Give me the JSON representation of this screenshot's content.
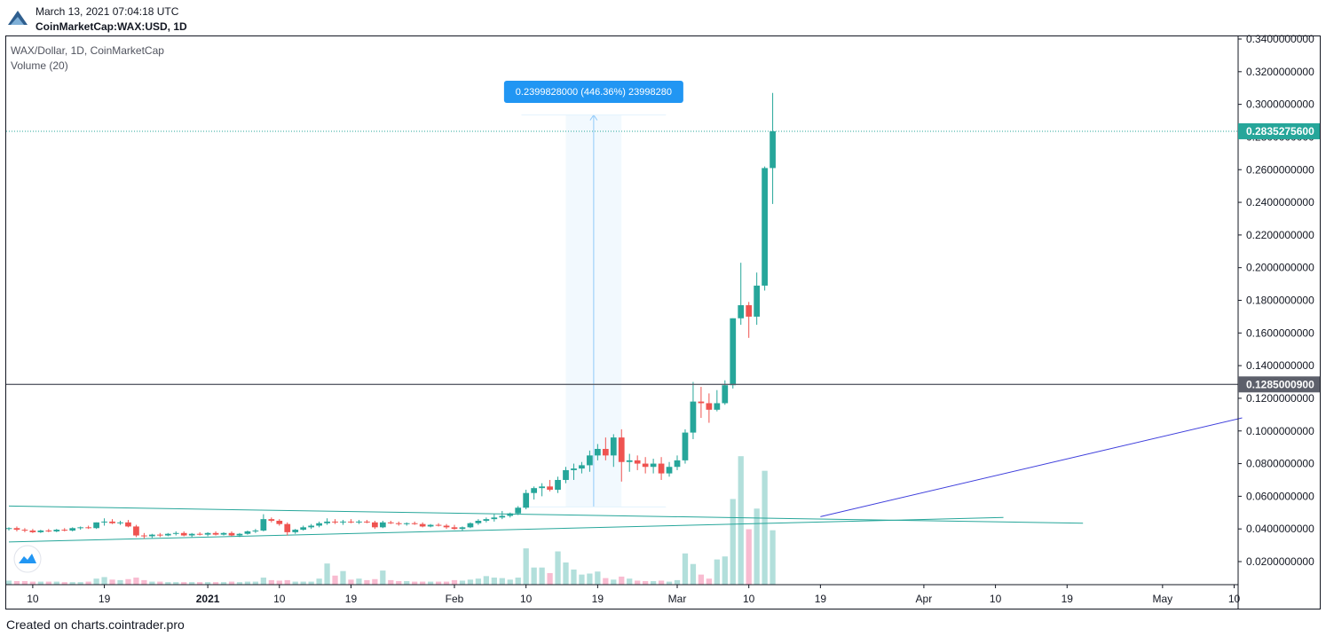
{
  "header": {
    "date": "March 13, 2021 07:04:18 UTC",
    "symbol": "CoinMarketCap:WAX:USD, 1D"
  },
  "legend": {
    "title": "WAX/Dollar, 1D, CoinMarketCap",
    "volume": "Volume (20)"
  },
  "footer": {
    "text": "Created on charts.cointrader.pro"
  },
  "colors": {
    "up": "#26a69a",
    "down": "#ef5350",
    "vol_up": "#b2dfdb",
    "vol_down": "#f8bbd0",
    "price_tag": "#26a69a",
    "level_tag": "#5d606b",
    "measure": "#2196f3",
    "trend_blue": "#3f3fdc",
    "trend_green": "#26a69a"
  },
  "chart_data": {
    "type": "candlestick",
    "ylim": [
      0.0,
      0.344
    ],
    "y_ticks": [
      "0.3400000000",
      "0.3200000000",
      "0.3000000000",
      "0.2800000000",
      "0.2600000000",
      "0.2400000000",
      "0.2200000000",
      "0.2000000000",
      "0.1800000000",
      "0.1600000000",
      "0.1400000000",
      "0.1200000000",
      "0.1000000000",
      "0.0800000000",
      "0.0600000000",
      "0.0400000000",
      "0.0200000000"
    ],
    "y_tick_values": [
      0.34,
      0.32,
      0.3,
      0.28,
      0.26,
      0.24,
      0.22,
      0.2,
      0.18,
      0.16,
      0.14,
      0.12,
      0.1,
      0.08,
      0.06,
      0.04,
      0.02
    ],
    "x_ticks": [
      {
        "label": "10",
        "day": -22
      },
      {
        "label": "19",
        "day": -13
      },
      {
        "label": "2021",
        "day": 0
      },
      {
        "label": "10",
        "day": 9
      },
      {
        "label": "19",
        "day": 18
      },
      {
        "label": "Feb",
        "day": 31
      },
      {
        "label": "10",
        "day": 40
      },
      {
        "label": "19",
        "day": 49
      },
      {
        "label": "Mar",
        "day": 59
      },
      {
        "label": "10",
        "day": 68
      },
      {
        "label": "19",
        "day": 77
      },
      {
        "label": "Apr",
        "day": 90
      },
      {
        "label": "10",
        "day": 99
      },
      {
        "label": "19",
        "day": 108
      },
      {
        "label": "May",
        "day": 120
      },
      {
        "label": "10",
        "day": 129
      }
    ],
    "x_range_days": [
      -25,
      129.5
    ],
    "candles": [
      {
        "d": -25,
        "o": 0.04,
        "h": 0.041,
        "l": 0.039,
        "c": 0.0405,
        "v": 0.8
      },
      {
        "d": -24,
        "o": 0.0405,
        "h": 0.0415,
        "l": 0.0385,
        "c": 0.0395,
        "v": 0.7
      },
      {
        "d": -23,
        "o": 0.0395,
        "h": 0.0405,
        "l": 0.038,
        "c": 0.039,
        "v": 0.7
      },
      {
        "d": -22,
        "o": 0.039,
        "h": 0.04,
        "l": 0.0375,
        "c": 0.038,
        "v": 0.6
      },
      {
        "d": -21,
        "o": 0.038,
        "h": 0.0395,
        "l": 0.0375,
        "c": 0.039,
        "v": 0.6
      },
      {
        "d": -20,
        "o": 0.039,
        "h": 0.04,
        "l": 0.038,
        "c": 0.0385,
        "v": 0.6
      },
      {
        "d": -19,
        "o": 0.0385,
        "h": 0.04,
        "l": 0.038,
        "c": 0.0395,
        "v": 0.6
      },
      {
        "d": -18,
        "o": 0.0395,
        "h": 0.0405,
        "l": 0.0385,
        "c": 0.039,
        "v": 0.5
      },
      {
        "d": -17,
        "o": 0.039,
        "h": 0.041,
        "l": 0.0385,
        "c": 0.0405,
        "v": 0.5
      },
      {
        "d": -16,
        "o": 0.0405,
        "h": 0.0415,
        "l": 0.0395,
        "c": 0.041,
        "v": 0.5
      },
      {
        "d": -15,
        "o": 0.041,
        "h": 0.042,
        "l": 0.04,
        "c": 0.0405,
        "v": 0.6
      },
      {
        "d": -14,
        "o": 0.0405,
        "h": 0.044,
        "l": 0.04,
        "c": 0.044,
        "v": 1.2
      },
      {
        "d": -13,
        "o": 0.044,
        "h": 0.0465,
        "l": 0.042,
        "c": 0.0445,
        "v": 1.5
      },
      {
        "d": -12,
        "o": 0.0445,
        "h": 0.046,
        "l": 0.043,
        "c": 0.0435,
        "v": 1.0
      },
      {
        "d": -11,
        "o": 0.0435,
        "h": 0.045,
        "l": 0.0425,
        "c": 0.044,
        "v": 0.9
      },
      {
        "d": -10,
        "o": 0.044,
        "h": 0.0455,
        "l": 0.041,
        "c": 0.0415,
        "v": 1.1
      },
      {
        "d": -9,
        "o": 0.0415,
        "h": 0.0425,
        "l": 0.035,
        "c": 0.036,
        "v": 1.4
      },
      {
        "d": -8,
        "o": 0.036,
        "h": 0.0375,
        "l": 0.034,
        "c": 0.0355,
        "v": 0.9
      },
      {
        "d": -7,
        "o": 0.0355,
        "h": 0.037,
        "l": 0.0345,
        "c": 0.0365,
        "v": 0.6
      },
      {
        "d": -6,
        "o": 0.0365,
        "h": 0.0375,
        "l": 0.035,
        "c": 0.036,
        "v": 0.6
      },
      {
        "d": -5,
        "o": 0.036,
        "h": 0.0375,
        "l": 0.0355,
        "c": 0.037,
        "v": 0.5
      },
      {
        "d": -4,
        "o": 0.037,
        "h": 0.0385,
        "l": 0.036,
        "c": 0.0375,
        "v": 0.5
      },
      {
        "d": -3,
        "o": 0.0375,
        "h": 0.0385,
        "l": 0.0355,
        "c": 0.036,
        "v": 0.5
      },
      {
        "d": -2,
        "o": 0.036,
        "h": 0.0375,
        "l": 0.035,
        "c": 0.037,
        "v": 0.5
      },
      {
        "d": -1,
        "o": 0.037,
        "h": 0.038,
        "l": 0.036,
        "c": 0.0365,
        "v": 0.5
      },
      {
        "d": 0,
        "o": 0.0365,
        "h": 0.038,
        "l": 0.0355,
        "c": 0.0375,
        "v": 0.5
      },
      {
        "d": 1,
        "o": 0.0375,
        "h": 0.0385,
        "l": 0.036,
        "c": 0.0365,
        "v": 0.5
      },
      {
        "d": 2,
        "o": 0.0365,
        "h": 0.038,
        "l": 0.036,
        "c": 0.0375,
        "v": 0.5
      },
      {
        "d": 3,
        "o": 0.0375,
        "h": 0.0385,
        "l": 0.0355,
        "c": 0.036,
        "v": 0.6
      },
      {
        "d": 4,
        "o": 0.036,
        "h": 0.0375,
        "l": 0.035,
        "c": 0.037,
        "v": 0.5
      },
      {
        "d": 5,
        "o": 0.037,
        "h": 0.039,
        "l": 0.0365,
        "c": 0.0385,
        "v": 0.6
      },
      {
        "d": 6,
        "o": 0.0385,
        "h": 0.04,
        "l": 0.0375,
        "c": 0.039,
        "v": 0.6
      },
      {
        "d": 7,
        "o": 0.039,
        "h": 0.049,
        "l": 0.0385,
        "c": 0.046,
        "v": 1.4
      },
      {
        "d": 8,
        "o": 0.046,
        "h": 0.047,
        "l": 0.044,
        "c": 0.045,
        "v": 0.9
      },
      {
        "d": 9,
        "o": 0.045,
        "h": 0.046,
        "l": 0.042,
        "c": 0.043,
        "v": 0.8
      },
      {
        "d": 10,
        "o": 0.043,
        "h": 0.044,
        "l": 0.036,
        "c": 0.038,
        "v": 0.9
      },
      {
        "d": 11,
        "o": 0.038,
        "h": 0.04,
        "l": 0.037,
        "c": 0.0395,
        "v": 0.6
      },
      {
        "d": 12,
        "o": 0.0395,
        "h": 0.042,
        "l": 0.039,
        "c": 0.041,
        "v": 0.6
      },
      {
        "d": 13,
        "o": 0.041,
        "h": 0.043,
        "l": 0.04,
        "c": 0.042,
        "v": 0.6
      },
      {
        "d": 14,
        "o": 0.042,
        "h": 0.0445,
        "l": 0.041,
        "c": 0.0435,
        "v": 1.2
      },
      {
        "d": 15,
        "o": 0.0435,
        "h": 0.0465,
        "l": 0.0425,
        "c": 0.0445,
        "v": 4.2
      },
      {
        "d": 16,
        "o": 0.0445,
        "h": 0.046,
        "l": 0.043,
        "c": 0.044,
        "v": 1.8
      },
      {
        "d": 17,
        "o": 0.044,
        "h": 0.0455,
        "l": 0.0425,
        "c": 0.0445,
        "v": 2.7
      },
      {
        "d": 18,
        "o": 0.0445,
        "h": 0.046,
        "l": 0.0435,
        "c": 0.044,
        "v": 1.0
      },
      {
        "d": 19,
        "o": 0.044,
        "h": 0.0455,
        "l": 0.043,
        "c": 0.0445,
        "v": 1.2
      },
      {
        "d": 20,
        "o": 0.0445,
        "h": 0.0455,
        "l": 0.0435,
        "c": 0.044,
        "v": 0.9
      },
      {
        "d": 21,
        "o": 0.044,
        "h": 0.045,
        "l": 0.04,
        "c": 0.041,
        "v": 1.1
      },
      {
        "d": 22,
        "o": 0.041,
        "h": 0.045,
        "l": 0.0405,
        "c": 0.044,
        "v": 2.8
      },
      {
        "d": 23,
        "o": 0.044,
        "h": 0.045,
        "l": 0.043,
        "c": 0.0435,
        "v": 0.9
      },
      {
        "d": 24,
        "o": 0.0435,
        "h": 0.0445,
        "l": 0.042,
        "c": 0.043,
        "v": 0.7
      },
      {
        "d": 25,
        "o": 0.043,
        "h": 0.044,
        "l": 0.042,
        "c": 0.0435,
        "v": 0.7
      },
      {
        "d": 26,
        "o": 0.0435,
        "h": 0.0445,
        "l": 0.0425,
        "c": 0.043,
        "v": 0.6
      },
      {
        "d": 27,
        "o": 0.043,
        "h": 0.044,
        "l": 0.041,
        "c": 0.0415,
        "v": 0.6
      },
      {
        "d": 28,
        "o": 0.0415,
        "h": 0.043,
        "l": 0.041,
        "c": 0.0425,
        "v": 0.6
      },
      {
        "d": 29,
        "o": 0.0425,
        "h": 0.0435,
        "l": 0.0415,
        "c": 0.042,
        "v": 0.6
      },
      {
        "d": 30,
        "o": 0.042,
        "h": 0.043,
        "l": 0.04,
        "c": 0.041,
        "v": 0.6
      },
      {
        "d": 31,
        "o": 0.041,
        "h": 0.0425,
        "l": 0.0395,
        "c": 0.04,
        "v": 0.9
      },
      {
        "d": 32,
        "o": 0.04,
        "h": 0.0415,
        "l": 0.039,
        "c": 0.041,
        "v": 0.8
      },
      {
        "d": 33,
        "o": 0.041,
        "h": 0.044,
        "l": 0.0405,
        "c": 0.0435,
        "v": 1.0
      },
      {
        "d": 34,
        "o": 0.0435,
        "h": 0.046,
        "l": 0.0425,
        "c": 0.045,
        "v": 1.2
      },
      {
        "d": 35,
        "o": 0.045,
        "h": 0.047,
        "l": 0.044,
        "c": 0.046,
        "v": 1.7
      },
      {
        "d": 36,
        "o": 0.046,
        "h": 0.049,
        "l": 0.0445,
        "c": 0.047,
        "v": 1.4
      },
      {
        "d": 37,
        "o": 0.047,
        "h": 0.051,
        "l": 0.046,
        "c": 0.048,
        "v": 1.3
      },
      {
        "d": 38,
        "o": 0.048,
        "h": 0.05,
        "l": 0.047,
        "c": 0.0495,
        "v": 1.0
      },
      {
        "d": 39,
        "o": 0.0495,
        "h": 0.054,
        "l": 0.0485,
        "c": 0.053,
        "v": 1.4
      },
      {
        "d": 40,
        "o": 0.053,
        "h": 0.064,
        "l": 0.052,
        "c": 0.062,
        "v": 7.2
      },
      {
        "d": 41,
        "o": 0.062,
        "h": 0.066,
        "l": 0.058,
        "c": 0.065,
        "v": 3.4
      },
      {
        "d": 42,
        "o": 0.065,
        "h": 0.068,
        "l": 0.06,
        "c": 0.066,
        "v": 3.4
      },
      {
        "d": 43,
        "o": 0.066,
        "h": 0.07,
        "l": 0.063,
        "c": 0.064,
        "v": 2.3
      },
      {
        "d": 44,
        "o": 0.064,
        "h": 0.072,
        "l": 0.062,
        "c": 0.07,
        "v": 6.6
      },
      {
        "d": 45,
        "o": 0.07,
        "h": 0.078,
        "l": 0.068,
        "c": 0.076,
        "v": 4.4
      },
      {
        "d": 46,
        "o": 0.076,
        "h": 0.08,
        "l": 0.07,
        "c": 0.077,
        "v": 3.0
      },
      {
        "d": 47,
        "o": 0.077,
        "h": 0.081,
        "l": 0.074,
        "c": 0.079,
        "v": 2.0
      },
      {
        "d": 48,
        "o": 0.079,
        "h": 0.088,
        "l": 0.075,
        "c": 0.085,
        "v": 2.2
      },
      {
        "d": 49,
        "o": 0.085,
        "h": 0.092,
        "l": 0.082,
        "c": 0.089,
        "v": 2.6
      },
      {
        "d": 50,
        "o": 0.089,
        "h": 0.096,
        "l": 0.082,
        "c": 0.085,
        "v": 1.3
      },
      {
        "d": 51,
        "o": 0.085,
        "h": 0.098,
        "l": 0.078,
        "c": 0.096,
        "v": 1.0
      },
      {
        "d": 52,
        "o": 0.096,
        "h": 0.101,
        "l": 0.069,
        "c": 0.081,
        "v": 1.6
      },
      {
        "d": 53,
        "o": 0.081,
        "h": 0.086,
        "l": 0.075,
        "c": 0.082,
        "v": 1.2
      },
      {
        "d": 54,
        "o": 0.082,
        "h": 0.085,
        "l": 0.076,
        "c": 0.08,
        "v": 0.8
      },
      {
        "d": 55,
        "o": 0.08,
        "h": 0.084,
        "l": 0.074,
        "c": 0.078,
        "v": 0.7
      },
      {
        "d": 56,
        "o": 0.078,
        "h": 0.083,
        "l": 0.074,
        "c": 0.08,
        "v": 0.7
      },
      {
        "d": 57,
        "o": 0.08,
        "h": 0.084,
        "l": 0.07,
        "c": 0.074,
        "v": 0.8
      },
      {
        "d": 58,
        "o": 0.074,
        "h": 0.081,
        "l": 0.072,
        "c": 0.078,
        "v": 0.6
      },
      {
        "d": 59,
        "o": 0.078,
        "h": 0.085,
        "l": 0.076,
        "c": 0.082,
        "v": 0.9
      },
      {
        "d": 60,
        "o": 0.082,
        "h": 0.101,
        "l": 0.08,
        "c": 0.099,
        "v": 6.2
      },
      {
        "d": 61,
        "o": 0.099,
        "h": 0.13,
        "l": 0.095,
        "c": 0.118,
        "v": 4.1
      },
      {
        "d": 62,
        "o": 0.118,
        "h": 0.127,
        "l": 0.108,
        "c": 0.117,
        "v": 2.0
      },
      {
        "d": 63,
        "o": 0.117,
        "h": 0.123,
        "l": 0.105,
        "c": 0.113,
        "v": 1.2
      },
      {
        "d": 64,
        "o": 0.113,
        "h": 0.125,
        "l": 0.112,
        "c": 0.117,
        "v": 5.0
      },
      {
        "d": 65,
        "o": 0.117,
        "h": 0.131,
        "l": 0.116,
        "c": 0.128,
        "v": 5.6
      },
      {
        "d": 66,
        "o": 0.128,
        "h": 0.169,
        "l": 0.126,
        "c": 0.169,
        "v": 17.0
      },
      {
        "d": 67,
        "o": 0.169,
        "h": 0.203,
        "l": 0.165,
        "c": 0.177,
        "v": 25.5
      },
      {
        "d": 68,
        "o": 0.177,
        "h": 0.179,
        "l": 0.157,
        "c": 0.17,
        "v": 11.0
      },
      {
        "d": 69,
        "o": 0.17,
        "h": 0.197,
        "l": 0.165,
        "c": 0.189,
        "v": 15.1
      },
      {
        "d": 70,
        "o": 0.189,
        "h": 0.262,
        "l": 0.186,
        "c": 0.261,
        "v": 22.6
      },
      {
        "d": 71,
        "o": 0.261,
        "h": 0.307,
        "l": 0.239,
        "c": 0.2835,
        "v": 10.8
      }
    ],
    "vol_max": 28,
    "current_price": {
      "value": 0.28352756,
      "label": "0.2835275600"
    },
    "level_line": {
      "value": 0.12850009,
      "label": "0.1285000900"
    },
    "measure": {
      "label": "0.2399828000 (446.36%) 23998280",
      "from": 0.0535,
      "to": 0.2935,
      "day_from": 45,
      "day_to": 52
    },
    "trendlines": [
      {
        "d1": -25,
        "v1": 0.054,
        "d2": 110,
        "v2": 0.0435
      },
      {
        "d1": -25,
        "v1": 0.032,
        "d2": 100,
        "v2": 0.047
      },
      {
        "d1": 77,
        "v1": 0.0475,
        "d2": 130,
        "v2": 0.108
      }
    ]
  }
}
